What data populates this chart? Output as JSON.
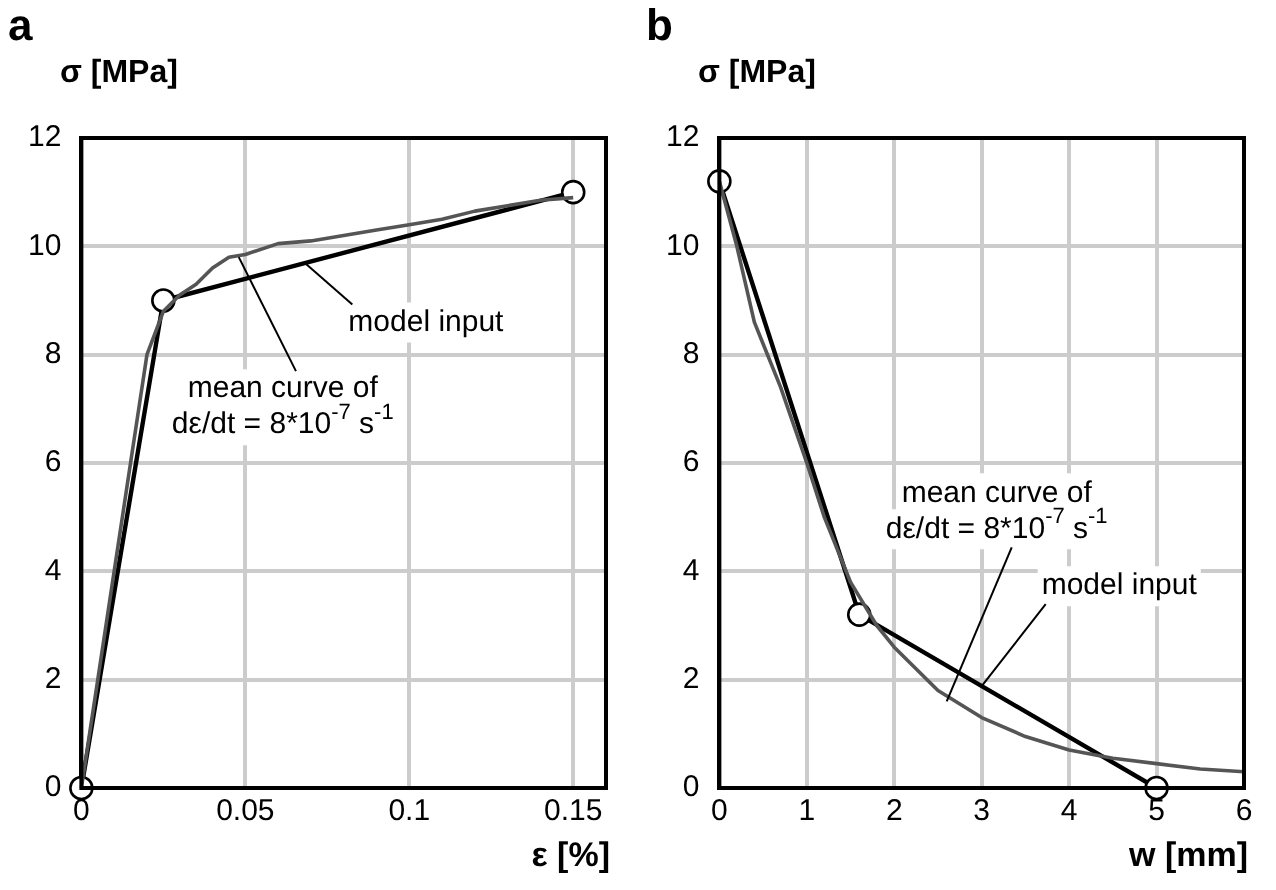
{
  "chart_data": [
    {
      "type": "line",
      "title": "a",
      "ylabel": "σ [MPa]",
      "xlabel": "ε [%]",
      "xlim": [
        0,
        0.16
      ],
      "xticks": [
        0,
        0.05,
        0.1,
        0.15
      ],
      "ylim": [
        0,
        12
      ],
      "yticks": [
        0,
        2,
        4,
        6,
        8,
        10,
        12
      ],
      "grid": true,
      "legend": false,
      "series": [
        {
          "color": "#555555",
          "marker": "none",
          "x": [
            0,
            0.005,
            0.01,
            0.015,
            0.02,
            0.025,
            0.03,
            0.035,
            0.04,
            0.045,
            0.05,
            0.06,
            0.07,
            0.08,
            0.09,
            0.1,
            0.11,
            0.12,
            0.13,
            0.14,
            0.15
          ],
          "values": [
            0,
            2,
            4,
            6,
            8,
            8.8,
            9.1,
            9.3,
            9.6,
            9.8,
            9.85,
            10.05,
            10.1,
            10.2,
            10.3,
            10.4,
            10.5,
            10.65,
            10.75,
            10.85,
            10.9
          ]
        },
        {
          "color": "#000000",
          "marker": "circle",
          "x": [
            0,
            0.025,
            0.15
          ],
          "values": [
            0,
            9,
            11
          ]
        }
      ],
      "annotations": [
        {
          "text": "model input",
          "x": 0.068,
          "y": 9.7
        },
        {
          "text": "mean curve of\ndε/dt = 8*10$^{-7}$ s$^{-1}$",
          "x": 0.048,
          "y": 9.8
        }
      ]
    },
    {
      "type": "line",
      "title": "b",
      "ylabel": "σ [MPa]",
      "xlabel": "w [mm]",
      "xlim": [
        0,
        6
      ],
      "xticks": [
        0,
        1,
        2,
        3,
        4,
        5,
        6
      ],
      "ylim": [
        0,
        12
      ],
      "yticks": [
        0,
        2,
        4,
        6,
        8,
        10,
        12
      ],
      "grid": true,
      "legend": false,
      "series": [
        {
          "color": "#555555",
          "marker": "none",
          "x": [
            0,
            0.2,
            0.4,
            0.7,
            1,
            1.2,
            1.5,
            1.8,
            2,
            2.5,
            3,
            3.5,
            4,
            4.5,
            5,
            5.5,
            6
          ],
          "values": [
            11.2,
            10,
            8.6,
            7.4,
            6,
            5,
            3.8,
            3,
            2.6,
            1.8,
            1.3,
            0.95,
            0.7,
            0.55,
            0.45,
            0.35,
            0.3
          ]
        },
        {
          "color": "#000000",
          "marker": "circle",
          "x": [
            0,
            1.6,
            5
          ],
          "values": [
            11.2,
            3.2,
            0
          ]
        }
      ],
      "annotations": [
        {
          "text": "mean curve of\ndε/dt = 8*10$^{-7}$ s$^{-1}$",
          "x": 2.6,
          "y": 1.6
        },
        {
          "text": "model input",
          "x": 3,
          "y": 1.88
        }
      ]
    }
  ]
}
